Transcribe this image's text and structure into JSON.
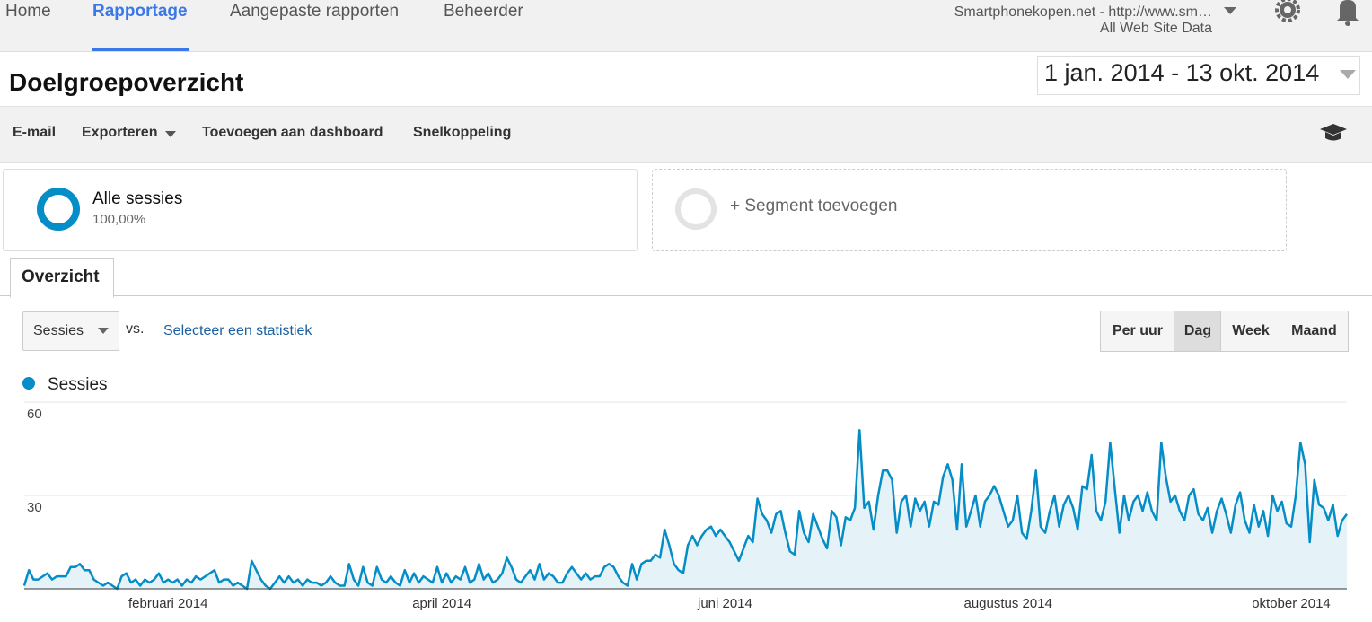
{
  "nav": {
    "items": [
      "Home",
      "Rapportage",
      "Aangepaste rapporten",
      "Beheerder"
    ]
  },
  "account": {
    "property": "Smartphonekopen.net - http://www.sm…",
    "view": "All Web Site Data"
  },
  "header": {
    "title": "Doelgroepoverzicht",
    "date_range": "1 jan. 2014 - 13 okt. 2014"
  },
  "toolbar": {
    "items": [
      "E-mail",
      "Exporteren",
      "Toevoegen aan dashboard",
      "Snelkoppeling"
    ]
  },
  "segments": {
    "name": "Alle sessies",
    "share": "100,00%",
    "add": "+ Segment toevoegen"
  },
  "tab": "Overzicht",
  "controls": {
    "metric": "Sessies",
    "vs": "vs.",
    "select": "Selecteer een statistiek",
    "granularity": [
      "Per uur",
      "Dag",
      "Week",
      "Maand"
    ]
  },
  "chart_data": {
    "type": "area",
    "series": [
      {
        "name": "Sessies",
        "color": "#058dc7",
        "values": [
          1,
          6,
          3,
          3,
          4,
          5,
          3,
          4,
          4,
          4,
          7,
          7,
          8,
          6,
          6,
          3,
          2,
          1,
          2,
          1,
          0,
          4,
          5,
          2,
          3,
          1,
          3,
          2,
          3,
          5,
          2,
          3,
          2,
          3,
          1,
          3,
          2,
          4,
          3,
          4,
          5,
          6,
          2,
          3,
          3,
          1,
          2,
          1,
          0,
          9,
          6,
          3,
          1,
          0,
          2,
          4,
          2,
          4,
          2,
          3,
          1,
          3,
          2,
          2,
          1,
          2,
          4,
          2,
          1,
          1,
          8,
          3,
          1,
          7,
          2,
          1,
          7,
          3,
          2,
          4,
          2,
          1,
          6,
          2,
          5,
          2,
          4,
          3,
          2,
          7,
          2,
          5,
          2,
          4,
          3,
          7,
          2,
          3,
          8,
          3,
          5,
          2,
          3,
          5,
          10,
          7,
          3,
          2,
          4,
          6,
          3,
          8,
          3,
          5,
          4,
          2,
          2,
          5,
          7,
          5,
          3,
          5,
          3,
          4,
          4,
          7,
          8,
          7,
          4,
          2,
          1,
          8,
          3,
          8,
          9,
          9,
          11,
          10,
          19,
          14,
          8,
          6,
          5,
          14,
          17,
          14,
          17,
          19,
          20,
          17,
          19,
          17,
          15,
          12,
          9,
          13,
          17,
          15,
          29,
          24,
          22,
          18,
          24,
          25,
          18,
          12,
          11,
          25,
          18,
          15,
          24,
          20,
          16,
          13,
          25,
          23,
          14,
          23,
          22,
          26,
          51,
          26,
          28,
          19,
          30,
          38,
          38,
          35,
          18,
          28,
          30,
          20,
          29,
          25,
          28,
          20,
          28,
          27,
          36,
          40,
          35,
          19,
          40,
          20,
          25,
          30,
          20,
          28,
          30,
          33,
          30,
          25,
          20,
          22,
          30,
          18,
          16,
          25,
          38,
          20,
          18,
          25,
          30,
          20,
          27,
          30,
          26,
          19,
          33,
          32,
          43,
          25,
          22,
          28,
          47,
          32,
          18,
          30,
          22,
          28,
          30,
          25,
          31,
          25,
          22,
          47,
          36,
          28,
          30,
          25,
          22,
          30,
          32,
          24,
          22,
          26,
          18,
          25,
          29,
          24,
          18,
          27,
          31,
          22,
          18,
          27,
          20,
          25,
          17,
          30,
          25,
          28,
          21,
          20,
          30,
          47,
          40,
          15,
          35,
          27,
          26,
          22,
          27,
          17,
          22,
          24
        ]
      }
    ],
    "categories": [
      null,
      null,
      null,
      null,
      null,
      null,
      null,
      null,
      null,
      null,
      null,
      null,
      null,
      null,
      null,
      null,
      null,
      null,
      null,
      null,
      null,
      null,
      null,
      null,
      null,
      null,
      null,
      null,
      null,
      null,
      null,
      "februari 2014",
      null,
      null,
      null,
      null,
      null,
      null,
      null,
      null,
      null,
      null,
      null,
      null,
      null,
      null,
      null,
      null,
      null,
      null,
      null,
      null,
      null,
      null,
      null,
      null,
      null,
      null,
      null,
      null,
      null,
      null,
      null,
      null,
      null,
      null,
      null,
      null,
      null,
      null,
      null,
      null,
      null,
      null,
      null,
      null,
      null,
      null,
      null,
      null,
      null,
      null,
      null,
      null,
      null,
      null,
      null,
      null,
      null,
      null,
      "april 2014",
      null,
      null,
      null,
      null,
      null,
      null,
      null,
      null,
      null,
      null,
      null,
      null,
      null,
      null,
      null,
      null,
      null,
      null,
      null,
      null,
      null,
      null,
      null,
      null,
      null,
      null,
      null,
      null,
      null,
      null,
      null,
      null,
      null,
      null,
      null,
      null,
      null,
      null,
      null,
      null,
      null,
      null,
      null,
      null,
      null,
      null,
      null,
      null,
      null,
      null,
      null,
      null,
      null,
      null,
      null,
      null,
      null,
      null,
      null,
      null,
      "juni 2014",
      null,
      null,
      null,
      null,
      null,
      null,
      null,
      null,
      null,
      null,
      null,
      null,
      null,
      null,
      null,
      null,
      null,
      null,
      null,
      null,
      null,
      null,
      null,
      null,
      null,
      null,
      null,
      null,
      null,
      null,
      null,
      null,
      null,
      null,
      null,
      null,
      null,
      null,
      null,
      null,
      null,
      null,
      null,
      null,
      null,
      null,
      null,
      null,
      null,
      null,
      null,
      null,
      null,
      null,
      null,
      null,
      null,
      null,
      null,
      null,
      "augustus 2014",
      null,
      null,
      null,
      null,
      null,
      null,
      null,
      null,
      null,
      null,
      null,
      null,
      null,
      null,
      null,
      null,
      null,
      null,
      null,
      null,
      null,
      null,
      null,
      null,
      null,
      null,
      null,
      null,
      null,
      null,
      null,
      null,
      null,
      null,
      null,
      null,
      null,
      null,
      null,
      null,
      null,
      null,
      null,
      null,
      null,
      null,
      null,
      null,
      null,
      null,
      null,
      null,
      null,
      null,
      null,
      null,
      null,
      null,
      null,
      null,
      "oktober 2014",
      null,
      null,
      null,
      null,
      null,
      null,
      null,
      null,
      null,
      null,
      null,
      null
    ],
    "ylim": [
      0,
      60
    ],
    "yticks": [
      30,
      60
    ],
    "grid": true,
    "area_color": "#e5f3f9"
  }
}
